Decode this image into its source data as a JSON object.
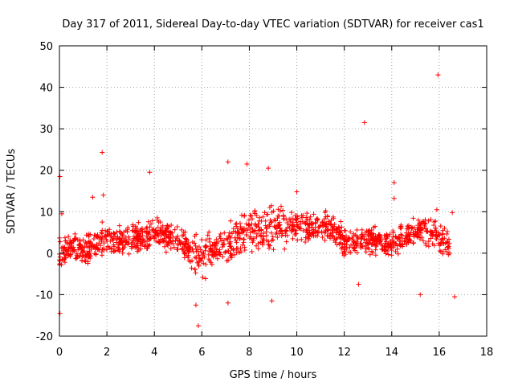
{
  "chart_data": {
    "type": "scatter",
    "title": "Day 317 of 2011, Sidereal Day-to-day VTEC variation (SDTVAR) for receiver cas1",
    "xlabel": "GPS time / hours",
    "ylabel": "SDTVAR / TECUs",
    "xlim": [
      0,
      18
    ],
    "ylim": [
      -20,
      50
    ],
    "xticks": [
      "0",
      "2",
      "4",
      "6",
      "8",
      "10",
      "12",
      "14",
      "16",
      "18"
    ],
    "yticks": [
      "-20",
      "-10",
      "0",
      "10",
      "20",
      "30",
      "40",
      "50"
    ],
    "grid": true,
    "marker": "+",
    "color": "#ff0000",
    "trend": [
      [
        0.0,
        0.0
      ],
      [
        0.5,
        1.5
      ],
      [
        1.0,
        0.5
      ],
      [
        1.5,
        2.0
      ],
      [
        2.0,
        2.5
      ],
      [
        2.5,
        3.0
      ],
      [
        3.0,
        3.5
      ],
      [
        3.5,
        4.0
      ],
      [
        4.0,
        5.0
      ],
      [
        4.5,
        4.0
      ],
      [
        5.0,
        3.0
      ],
      [
        5.5,
        1.0
      ],
      [
        6.0,
        -2.0
      ],
      [
        6.5,
        1.0
      ],
      [
        7.0,
        2.0
      ],
      [
        7.5,
        4.0
      ],
      [
        8.0,
        6.0
      ],
      [
        8.5,
        5.0
      ],
      [
        9.0,
        6.0
      ],
      [
        9.5,
        6.5
      ],
      [
        10.0,
        7.0
      ],
      [
        10.5,
        6.0
      ],
      [
        11.0,
        7.0
      ],
      [
        11.5,
        6.0
      ],
      [
        12.0,
        3.0
      ],
      [
        12.5,
        2.0
      ],
      [
        13.0,
        3.0
      ],
      [
        13.5,
        2.5
      ],
      [
        14.0,
        3.0
      ],
      [
        14.5,
        4.0
      ],
      [
        15.0,
        5.0
      ],
      [
        15.5,
        5.5
      ],
      [
        16.0,
        4.0
      ],
      [
        16.5,
        1.0
      ]
    ],
    "outliers": [
      [
        0.02,
        18.5
      ],
      [
        0.02,
        -14.5
      ],
      [
        0.1,
        9.5
      ],
      [
        1.4,
        13.5
      ],
      [
        1.8,
        24.3
      ],
      [
        1.85,
        14.0
      ],
      [
        1.8,
        7.5
      ],
      [
        3.8,
        19.5
      ],
      [
        5.85,
        -17.5
      ],
      [
        5.75,
        -12.5
      ],
      [
        7.1,
        22.0
      ],
      [
        7.1,
        -12.0
      ],
      [
        7.9,
        21.5
      ],
      [
        8.8,
        20.5
      ],
      [
        8.95,
        -11.5
      ],
      [
        10.0,
        14.8
      ],
      [
        12.6,
        -7.5
      ],
      [
        12.85,
        31.5
      ],
      [
        14.1,
        17.0
      ],
      [
        14.1,
        13.2
      ],
      [
        15.2,
        -10.0
      ],
      [
        15.95,
        43.0
      ],
      [
        15.9,
        10.5
      ],
      [
        16.65,
        -10.5
      ],
      [
        16.55,
        9.8
      ]
    ]
  }
}
